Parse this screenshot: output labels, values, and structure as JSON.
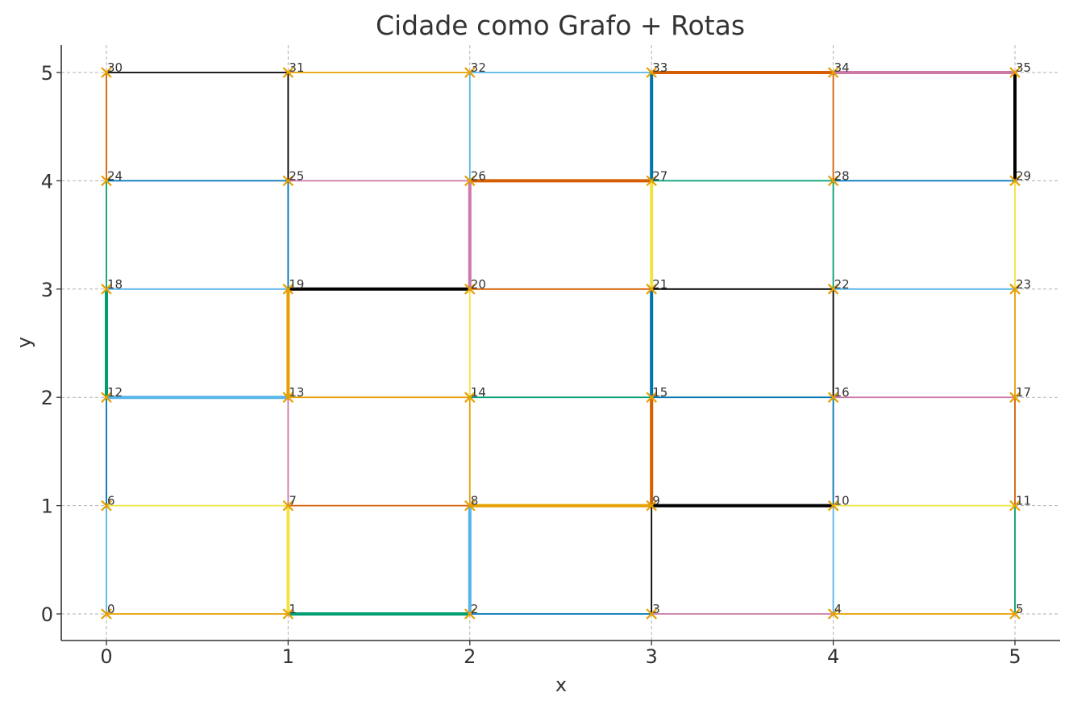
{
  "chart_data": {
    "type": "scatter",
    "title": "Cidade como Grafo + Rotas",
    "xlabel": "x",
    "ylabel": "y",
    "xlim": [
      -0.25,
      5.25
    ],
    "ylim": [
      -0.25,
      5.25
    ],
    "xticks": [
      "0",
      "1",
      "2",
      "3",
      "4",
      "5"
    ],
    "yticks": [
      "0",
      "1",
      "2",
      "3",
      "4",
      "5"
    ],
    "grid": true,
    "marker": "x",
    "marker_color": "#E69F00",
    "nodes": [
      {
        "id": "0",
        "x": 0,
        "y": 0
      },
      {
        "id": "1",
        "x": 1,
        "y": 0
      },
      {
        "id": "2",
        "x": 2,
        "y": 0
      },
      {
        "id": "3",
        "x": 3,
        "y": 0
      },
      {
        "id": "4",
        "x": 4,
        "y": 0
      },
      {
        "id": "5",
        "x": 5,
        "y": 0
      },
      {
        "id": "6",
        "x": 0,
        "y": 1
      },
      {
        "id": "7",
        "x": 1,
        "y": 1
      },
      {
        "id": "8",
        "x": 2,
        "y": 1
      },
      {
        "id": "9",
        "x": 3,
        "y": 1
      },
      {
        "id": "10",
        "x": 4,
        "y": 1
      },
      {
        "id": "11",
        "x": 5,
        "y": 1
      },
      {
        "id": "12",
        "x": 0,
        "y": 2
      },
      {
        "id": "13",
        "x": 1,
        "y": 2
      },
      {
        "id": "14",
        "x": 2,
        "y": 2
      },
      {
        "id": "15",
        "x": 3,
        "y": 2
      },
      {
        "id": "16",
        "x": 4,
        "y": 2
      },
      {
        "id": "17",
        "x": 5,
        "y": 2
      },
      {
        "id": "18",
        "x": 0,
        "y": 3
      },
      {
        "id": "19",
        "x": 1,
        "y": 3
      },
      {
        "id": "20",
        "x": 2,
        "y": 3
      },
      {
        "id": "21",
        "x": 3,
        "y": 3
      },
      {
        "id": "22",
        "x": 4,
        "y": 3
      },
      {
        "id": "23",
        "x": 5,
        "y": 3
      },
      {
        "id": "24",
        "x": 0,
        "y": 4
      },
      {
        "id": "25",
        "x": 1,
        "y": 4
      },
      {
        "id": "26",
        "x": 2,
        "y": 4
      },
      {
        "id": "27",
        "x": 3,
        "y": 4
      },
      {
        "id": "28",
        "x": 4,
        "y": 4
      },
      {
        "id": "29",
        "x": 5,
        "y": 4
      },
      {
        "id": "30",
        "x": 0,
        "y": 5
      },
      {
        "id": "31",
        "x": 1,
        "y": 5
      },
      {
        "id": "32",
        "x": 2,
        "y": 5
      },
      {
        "id": "33",
        "x": 3,
        "y": 5
      },
      {
        "id": "34",
        "x": 4,
        "y": 5
      },
      {
        "id": "35",
        "x": 5,
        "y": 5
      }
    ],
    "edges": [
      {
        "from": "0",
        "to": "1",
        "color": "#E69F00",
        "route": false
      },
      {
        "from": "1",
        "to": "2",
        "color": "#009E73",
        "route": true
      },
      {
        "from": "2",
        "to": "3",
        "color": "#0072B2",
        "route": false
      },
      {
        "from": "3",
        "to": "4",
        "color": "#CC79A7",
        "route": false
      },
      {
        "from": "4",
        "to": "5",
        "color": "#E69F00",
        "route": false
      },
      {
        "from": "6",
        "to": "7",
        "color": "#F0E442",
        "route": false
      },
      {
        "from": "7",
        "to": "8",
        "color": "#D55E00",
        "route": false
      },
      {
        "from": "8",
        "to": "9",
        "color": "#E69F00",
        "route": true
      },
      {
        "from": "9",
        "to": "10",
        "color": "#000000",
        "route": true
      },
      {
        "from": "10",
        "to": "11",
        "color": "#F0E442",
        "route": false
      },
      {
        "from": "12",
        "to": "13",
        "color": "#56B4E9",
        "route": true
      },
      {
        "from": "13",
        "to": "14",
        "color": "#E69F00",
        "route": false
      },
      {
        "from": "14",
        "to": "15",
        "color": "#009E73",
        "route": false
      },
      {
        "from": "15",
        "to": "16",
        "color": "#0072B2",
        "route": false
      },
      {
        "from": "16",
        "to": "17",
        "color": "#CC79A7",
        "route": false
      },
      {
        "from": "18",
        "to": "19",
        "color": "#56B4E9",
        "route": false
      },
      {
        "from": "19",
        "to": "20",
        "color": "#000000",
        "route": true
      },
      {
        "from": "20",
        "to": "21",
        "color": "#D55E00",
        "route": false
      },
      {
        "from": "21",
        "to": "22",
        "color": "#000000",
        "route": false
      },
      {
        "from": "22",
        "to": "23",
        "color": "#56B4E9",
        "route": false
      },
      {
        "from": "24",
        "to": "25",
        "color": "#0072B2",
        "route": false
      },
      {
        "from": "25",
        "to": "26",
        "color": "#CC79A7",
        "route": false
      },
      {
        "from": "26",
        "to": "27",
        "color": "#D55E00",
        "route": true
      },
      {
        "from": "27",
        "to": "28",
        "color": "#009E73",
        "route": false
      },
      {
        "from": "28",
        "to": "29",
        "color": "#0072B2",
        "route": false
      },
      {
        "from": "30",
        "to": "31",
        "color": "#000000",
        "route": false
      },
      {
        "from": "31",
        "to": "32",
        "color": "#E69F00",
        "route": false
      },
      {
        "from": "32",
        "to": "33",
        "color": "#56B4E9",
        "route": false
      },
      {
        "from": "33",
        "to": "34",
        "color": "#D55E00",
        "route": true
      },
      {
        "from": "34",
        "to": "35",
        "color": "#CC79A7",
        "route": true
      },
      {
        "from": "0",
        "to": "6",
        "color": "#56B4E9",
        "route": false
      },
      {
        "from": "6",
        "to": "12",
        "color": "#0072B2",
        "route": false
      },
      {
        "from": "12",
        "to": "18",
        "color": "#009E73",
        "route": true
      },
      {
        "from": "18",
        "to": "24",
        "color": "#009E73",
        "route": false
      },
      {
        "from": "24",
        "to": "30",
        "color": "#D55E00",
        "route": false
      },
      {
        "from": "1",
        "to": "7",
        "color": "#F0E442",
        "route": true
      },
      {
        "from": "7",
        "to": "13",
        "color": "#CC79A7",
        "route": false
      },
      {
        "from": "13",
        "to": "19",
        "color": "#E69F00",
        "route": true
      },
      {
        "from": "19",
        "to": "25",
        "color": "#0072B2",
        "route": false
      },
      {
        "from": "25",
        "to": "31",
        "color": "#000000",
        "route": false
      },
      {
        "from": "2",
        "to": "8",
        "color": "#56B4E9",
        "route": true
      },
      {
        "from": "8",
        "to": "14",
        "color": "#E69F00",
        "route": false
      },
      {
        "from": "14",
        "to": "20",
        "color": "#F0E442",
        "route": false
      },
      {
        "from": "20",
        "to": "26",
        "color": "#CC79A7",
        "route": true
      },
      {
        "from": "26",
        "to": "32",
        "color": "#56B4E9",
        "route": false
      },
      {
        "from": "3",
        "to": "9",
        "color": "#000000",
        "route": false
      },
      {
        "from": "9",
        "to": "15",
        "color": "#D55E00",
        "route": true
      },
      {
        "from": "15",
        "to": "21",
        "color": "#0072B2",
        "route": true
      },
      {
        "from": "21",
        "to": "27",
        "color": "#F0E442",
        "route": true
      },
      {
        "from": "27",
        "to": "33",
        "color": "#0072B2",
        "route": true
      },
      {
        "from": "4",
        "to": "10",
        "color": "#56B4E9",
        "route": false
      },
      {
        "from": "10",
        "to": "16",
        "color": "#0072B2",
        "route": false
      },
      {
        "from": "16",
        "to": "22",
        "color": "#000000",
        "route": false
      },
      {
        "from": "22",
        "to": "28",
        "color": "#009E73",
        "route": false
      },
      {
        "from": "28",
        "to": "34",
        "color": "#D55E00",
        "route": false
      },
      {
        "from": "5",
        "to": "11",
        "color": "#009E73",
        "route": false
      },
      {
        "from": "11",
        "to": "17",
        "color": "#D55E00",
        "route": false
      },
      {
        "from": "17",
        "to": "23",
        "color": "#E69F00",
        "route": false
      },
      {
        "from": "23",
        "to": "29",
        "color": "#F0E442",
        "route": false
      },
      {
        "from": "29",
        "to": "35",
        "color": "#000000",
        "route": true
      }
    ]
  }
}
